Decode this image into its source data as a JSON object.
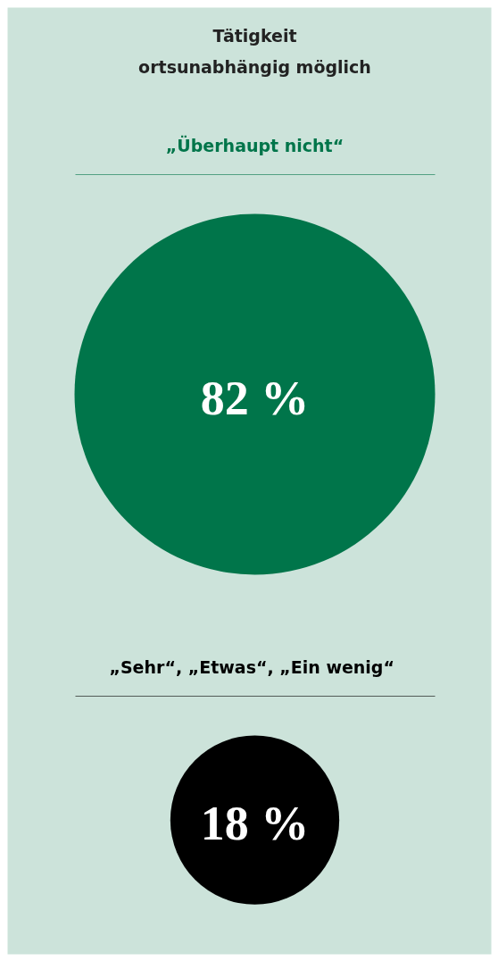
{
  "chart_data": {
    "type": "other",
    "title": "Tätigkeit\nortsunabhängig möglich",
    "categories": [
      "„Überhaupt nicht“",
      "„Sehr“,  „Etwas“, „Ein wenig“"
    ],
    "values": [
      82,
      18
    ],
    "colors": [
      "#00754a",
      "#000000"
    ],
    "value_labels": [
      "82 %",
      "18 %"
    ]
  }
}
